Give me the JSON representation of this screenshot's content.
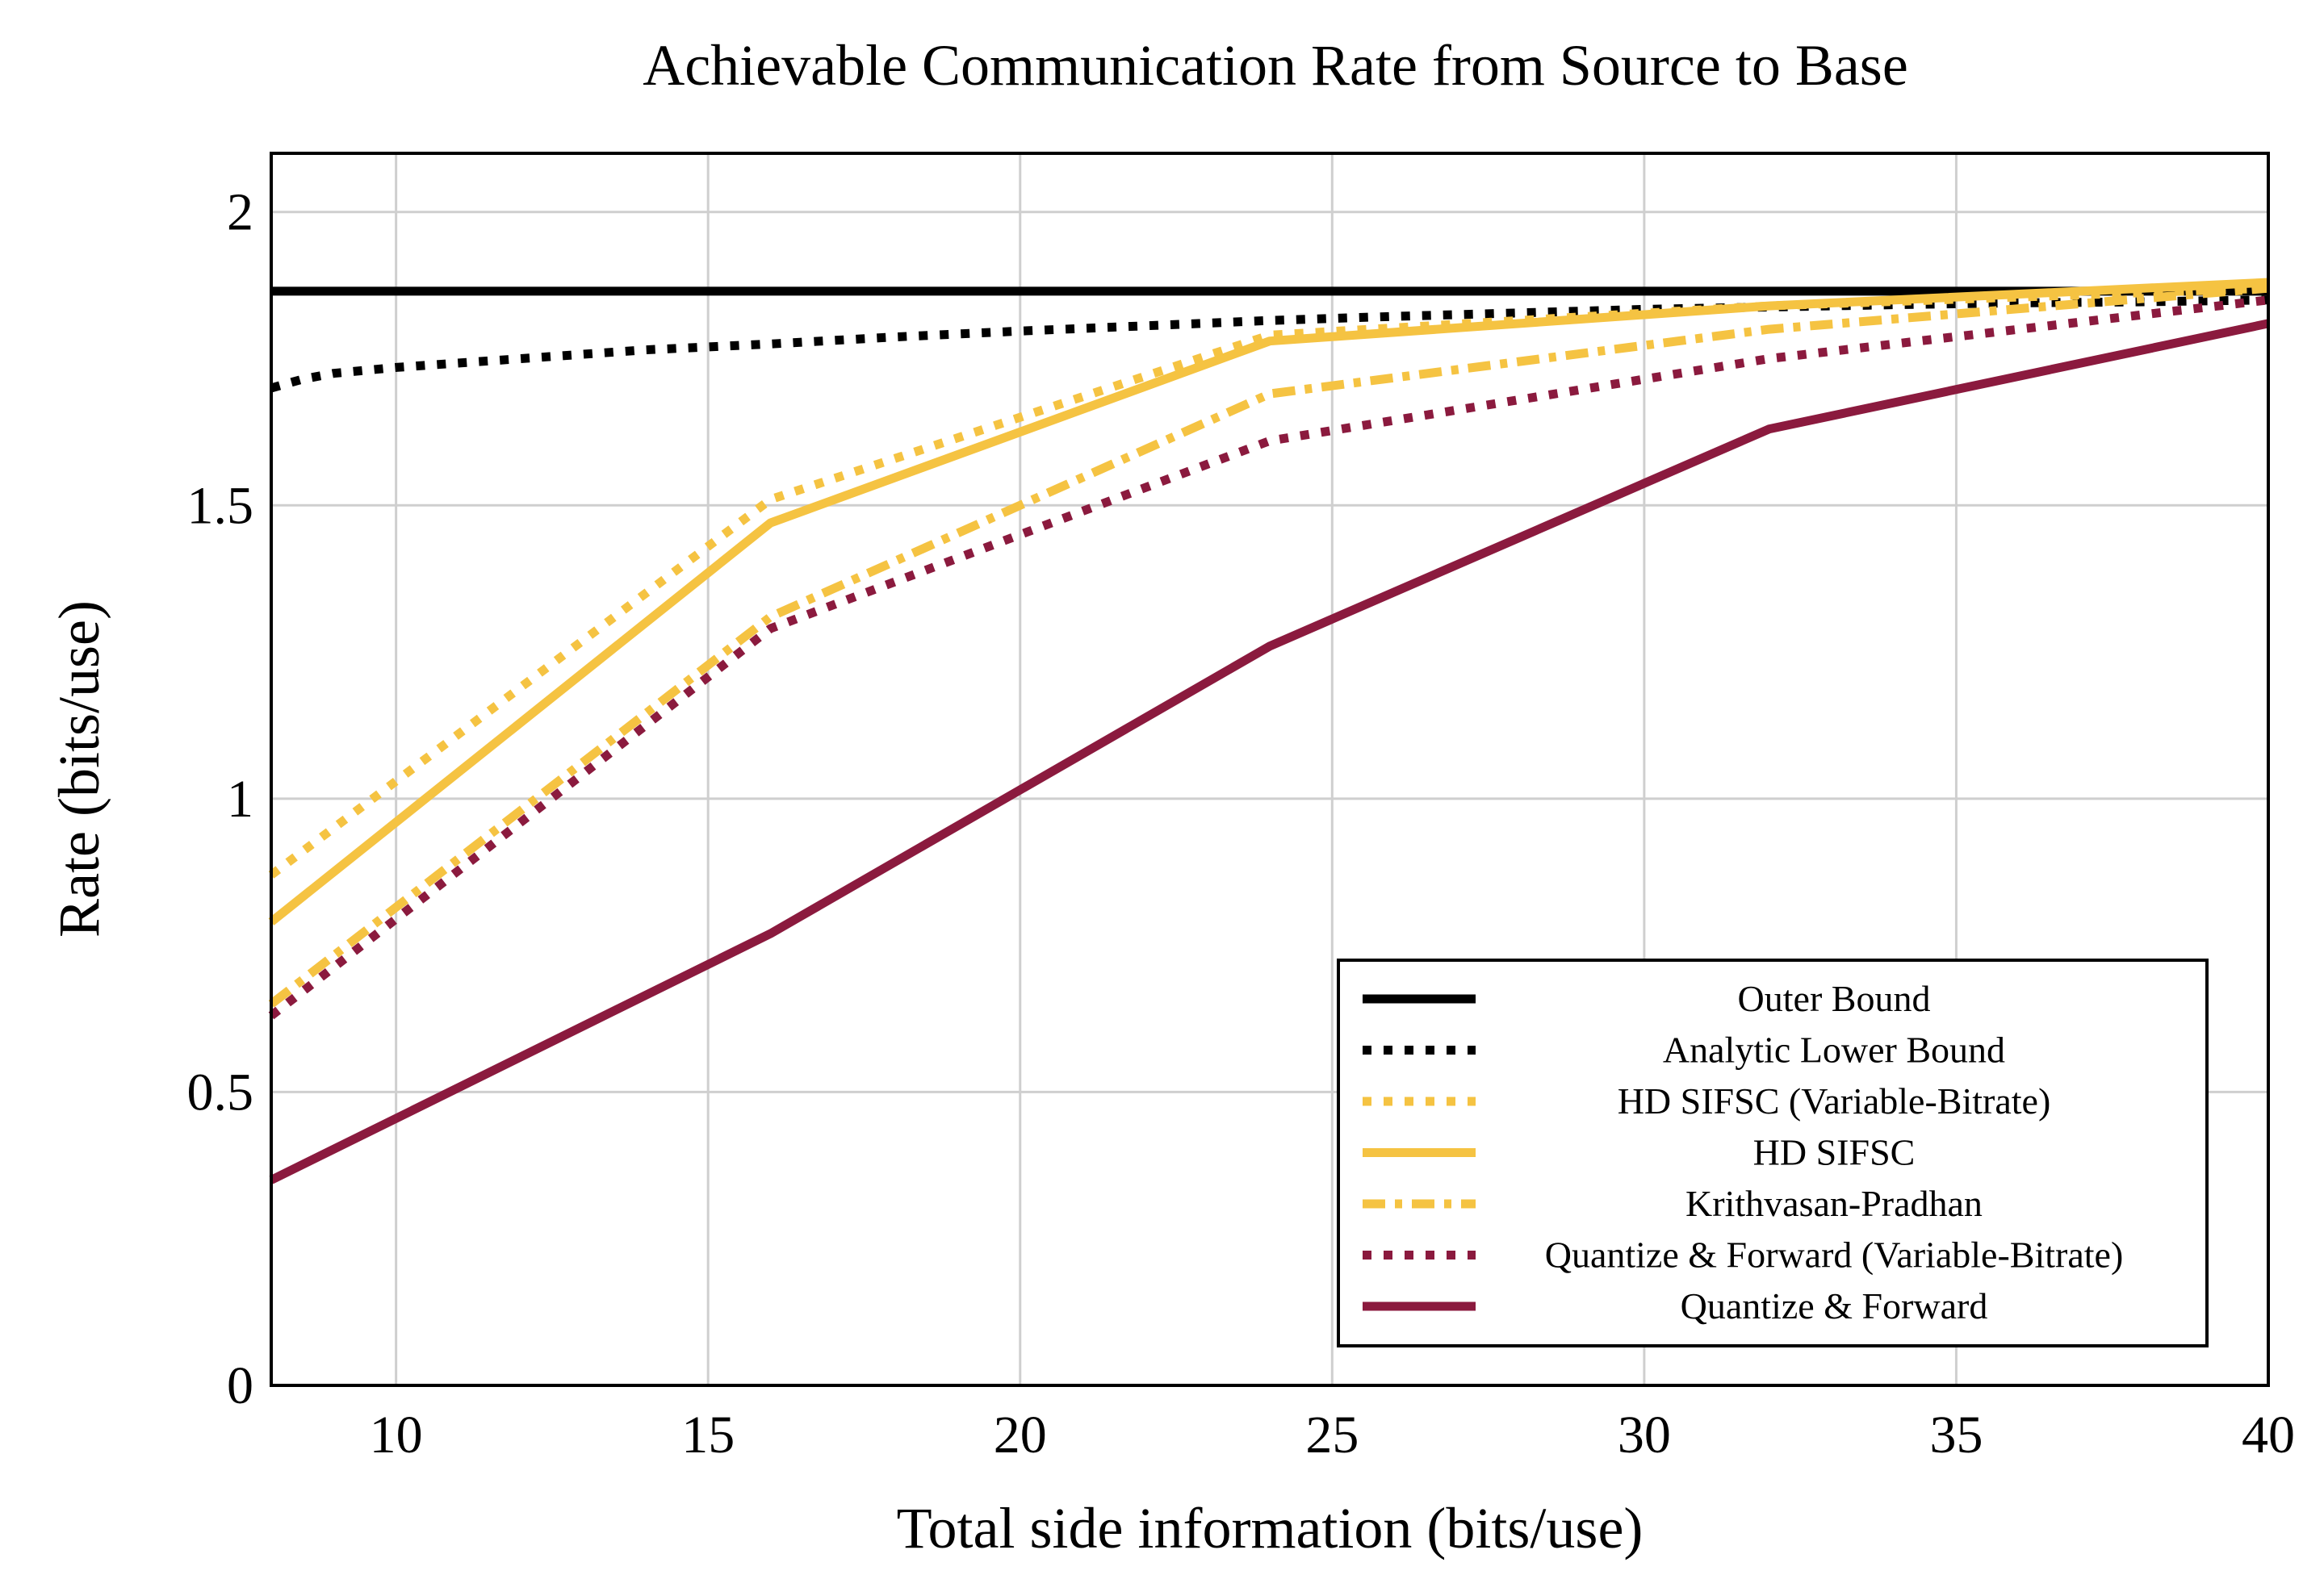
{
  "chart_data": {
    "type": "line",
    "title": "Achievable Communication Rate from Source to Base",
    "xlabel": "Total side information (bits/use)",
    "ylabel": "Rate (bits/use)",
    "xlim": [
      8,
      40
    ],
    "ylim": [
      0,
      2.1
    ],
    "xticks": [
      10,
      15,
      20,
      25,
      30,
      35,
      40
    ],
    "xtick_labels": [
      "10",
      "15",
      "20",
      "25",
      "30",
      "35",
      "40"
    ],
    "yticks": [
      0,
      0.5,
      1,
      1.5,
      2
    ],
    "ytick_labels": [
      "0",
      "0.5",
      "1",
      "1.5",
      "2"
    ],
    "grid": true,
    "legend_position": "bottom-right",
    "series": [
      {
        "name": "Outer Bound",
        "color": "#000000",
        "style": "solid",
        "x": [
          8,
          40
        ],
        "y": [
          1.865,
          1.865
        ]
      },
      {
        "name": "Analytic Lower Bound",
        "color": "#000000",
        "style": "dotted",
        "x": [
          8,
          8.5,
          9,
          10,
          12,
          14,
          16,
          18,
          20,
          22,
          24,
          26,
          28,
          30,
          32,
          34,
          36,
          38,
          40
        ],
        "y": [
          1.7,
          1.715,
          1.725,
          1.735,
          1.75,
          1.765,
          1.775,
          1.787,
          1.797,
          1.806,
          1.815,
          1.822,
          1.828,
          1.834,
          1.838,
          1.842,
          1.845,
          1.847,
          1.85
        ]
      },
      {
        "name": "HD SIFSC (Variable-Bitrate)",
        "color": "#f5c342",
        "style": "dotted",
        "x": [
          8,
          16,
          24,
          32,
          40
        ],
        "y": [
          0.87,
          1.51,
          1.79,
          1.84,
          1.87
        ]
      },
      {
        "name": "HD SIFSC",
        "color": "#f5c342",
        "style": "solid",
        "x": [
          8,
          16,
          24,
          32,
          40
        ],
        "y": [
          0.79,
          1.47,
          1.78,
          1.84,
          1.88
        ]
      },
      {
        "name": "Krithvasan-Pradhan",
        "color": "#f5c342",
        "style": "dashdot",
        "x": [
          8,
          16,
          24,
          32,
          40
        ],
        "y": [
          0.65,
          1.31,
          1.69,
          1.8,
          1.87
        ]
      },
      {
        "name": "Quantize & Forward (Variable-Bitrate)",
        "color": "#8b1a3e",
        "style": "dotted",
        "x": [
          8,
          16,
          24,
          32,
          40
        ],
        "y": [
          0.63,
          1.29,
          1.61,
          1.75,
          1.85
        ]
      },
      {
        "name": "Quantize & Forward",
        "color": "#8b1a3e",
        "style": "solid",
        "x": [
          8,
          16,
          24,
          32,
          40
        ],
        "y": [
          0.35,
          0.77,
          1.26,
          1.63,
          1.81
        ]
      }
    ]
  }
}
